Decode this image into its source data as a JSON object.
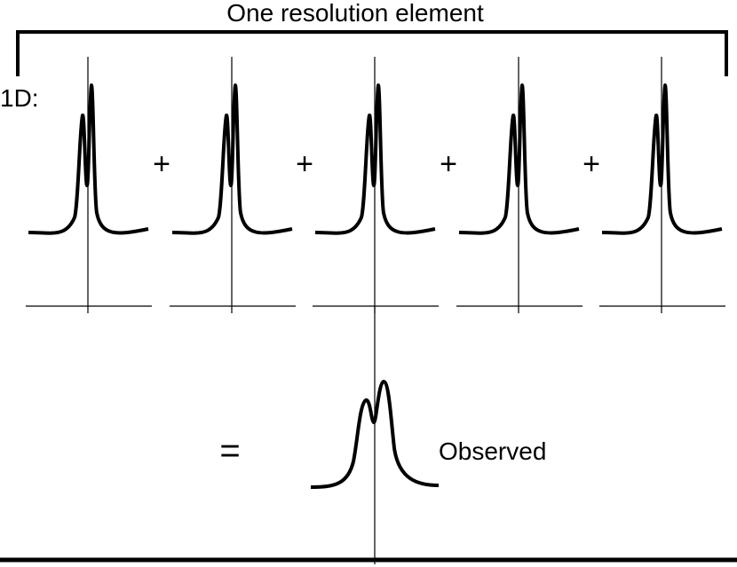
{
  "title": "One resolution element",
  "dimension_label": "1D:",
  "plus_sign": "+",
  "equals_sign": "=",
  "result_label": "Observed",
  "panel_count": 5,
  "colors": {
    "ink": "#000000",
    "background": "#ffffff"
  }
}
